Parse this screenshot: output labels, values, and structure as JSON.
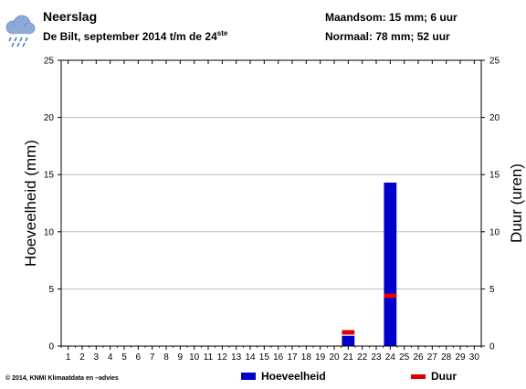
{
  "header": {
    "title": "Neerslag",
    "subtitle_main": "De Bilt, september 2014 t/m de 24",
    "subtitle_sup": "ste",
    "month_total": "Maandsom: 15 mm; 6 uur",
    "normal": "Normaal: 78 mm; 52 uur"
  },
  "footer": {
    "copyright": "© 2014, KNMI Klimaatdata en –advies"
  },
  "icons": {
    "weather": "rain-cloud-icon"
  },
  "colors": {
    "amount": "#0000cc",
    "duration": "#dd0000"
  },
  "chart_data": {
    "type": "bar",
    "ylabel": "Hoeveelheid (mm)",
    "y2label": "Duur (uren)",
    "x": [
      1,
      2,
      3,
      4,
      5,
      6,
      7,
      8,
      9,
      10,
      11,
      12,
      13,
      14,
      15,
      16,
      17,
      18,
      19,
      20,
      21,
      22,
      23,
      24,
      25,
      26,
      27,
      28,
      29,
      30
    ],
    "ylim": [
      0,
      25
    ],
    "y2lim": [
      0,
      25
    ],
    "yticks": [
      0,
      5,
      10,
      15,
      20,
      25
    ],
    "grid": true,
    "legend_position": "bottom",
    "series": [
      {
        "name": "Hoeveelheid",
        "type": "bar",
        "color": "#0000cc",
        "points": [
          {
            "x": 21,
            "y": 0.9
          },
          {
            "x": 24,
            "y": 14.3
          }
        ]
      },
      {
        "name": "Duur",
        "type": "marker",
        "color": "#dd0000",
        "points": [
          {
            "x": 21,
            "y": 1.2
          },
          {
            "x": 24,
            "y": 4.4
          }
        ]
      }
    ]
  }
}
